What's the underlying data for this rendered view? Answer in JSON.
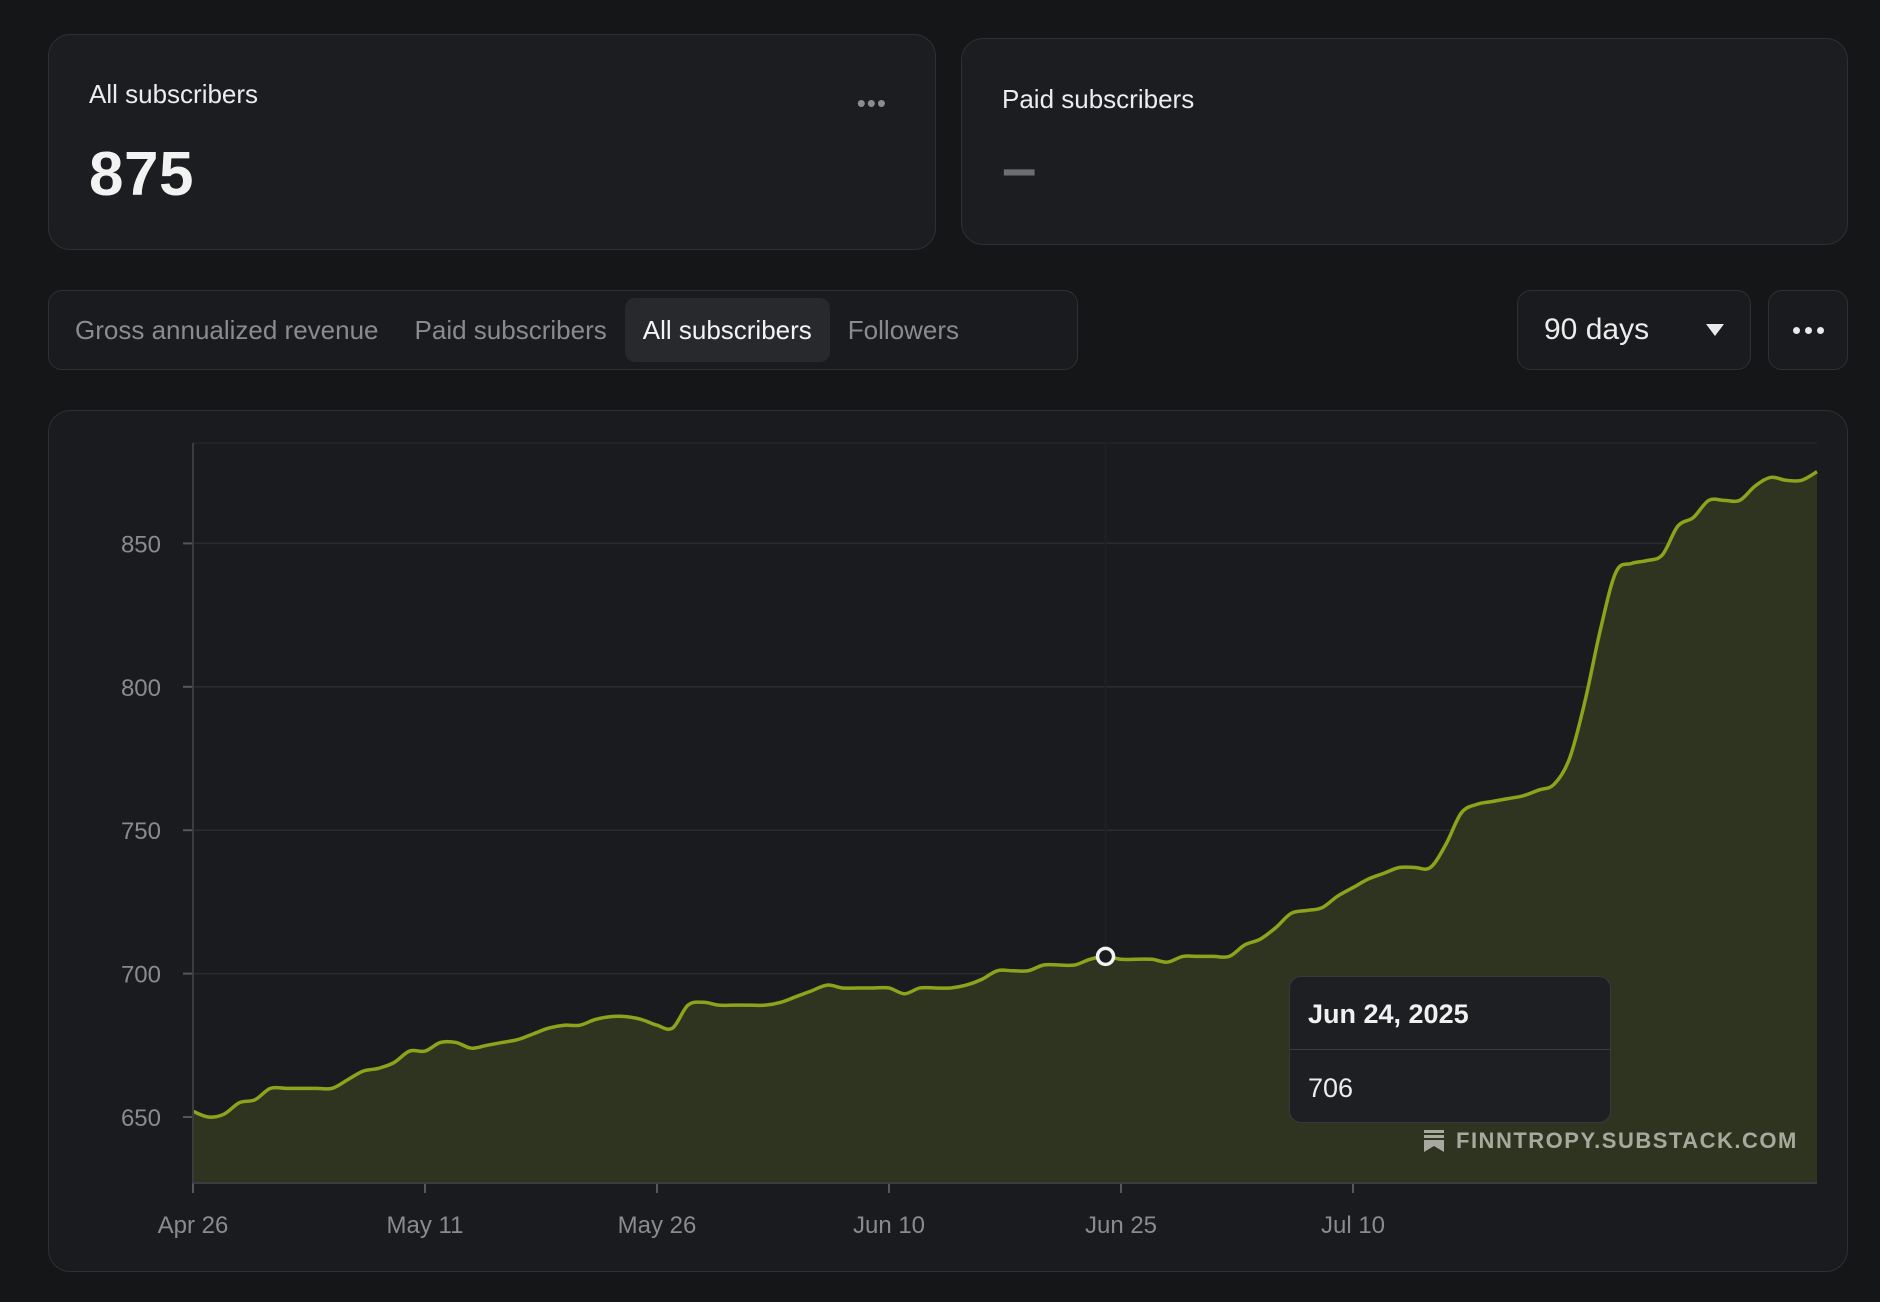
{
  "cards": {
    "all_subscribers": {
      "title": "All subscribers",
      "value": "875"
    },
    "paid_subscribers": {
      "title": "Paid subscribers",
      "value": "–"
    }
  },
  "tabs": [
    {
      "label": "Gross annualized revenue",
      "active": false
    },
    {
      "label": "Paid subscribers",
      "active": false
    },
    {
      "label": "All subscribers",
      "active": true
    },
    {
      "label": "Followers",
      "active": false
    }
  ],
  "range_select": {
    "value": "90 days"
  },
  "tooltip": {
    "date": "Jun 24, 2025",
    "value": "706"
  },
  "watermark": "FINNTROPY.SUBSTACK.COM",
  "icons": {
    "card_menu": "ellipsis-icon",
    "range_caret": "caret-down-icon",
    "more": "ellipsis-icon",
    "watermark": "bookmark-icon"
  },
  "colors": {
    "line": "#8ea31b",
    "area": "#2f3421",
    "background": "#151618",
    "card": "#1c1d20"
  },
  "chart_data": {
    "type": "area",
    "x_ticks": [
      "Apr 26",
      "May 11",
      "May 26",
      "Jun 10",
      "Jun 25",
      "Jul 10"
    ],
    "y_ticks": [
      650,
      700,
      750,
      800,
      850
    ],
    "ylim": [
      627,
      885
    ],
    "highlight": {
      "date": "Jun 24, 2025",
      "value": 706
    },
    "grid": true,
    "values": [
      652,
      650,
      651,
      655,
      656,
      660,
      660,
      660,
      660,
      660,
      663,
      666,
      667,
      669,
      673,
      673,
      676,
      676,
      674,
      675,
      676,
      677,
      679,
      681,
      682,
      682,
      684,
      685,
      685,
      684,
      682,
      681,
      689,
      690,
      689,
      689,
      689,
      689,
      690,
      692,
      694,
      696,
      695,
      695,
      695,
      695,
      693,
      695,
      695,
      695,
      696,
      698,
      701,
      701,
      701,
      703,
      703,
      703,
      705,
      706,
      705,
      705,
      705,
      704,
      706,
      706,
      706,
      706,
      710,
      712,
      716,
      721,
      722,
      723,
      727,
      730,
      733,
      735,
      737,
      737,
      737,
      745,
      756,
      759,
      760,
      761,
      762,
      764,
      766,
      775,
      795,
      820,
      840,
      843,
      844,
      846,
      856,
      859,
      865,
      865,
      865,
      870,
      873,
      872,
      872,
      875
    ]
  }
}
